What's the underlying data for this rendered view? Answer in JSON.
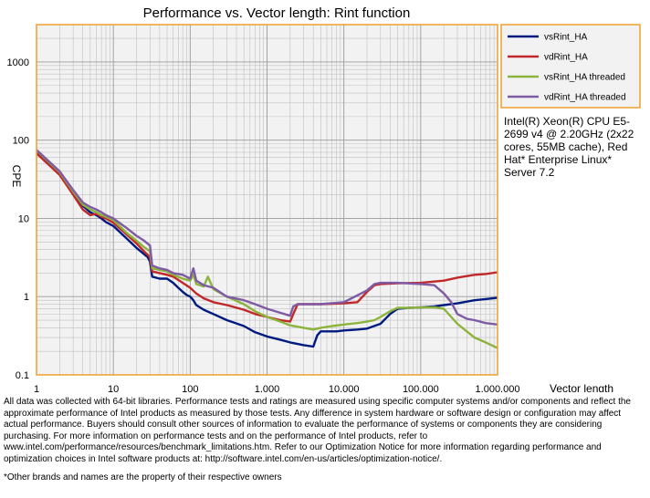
{
  "chart_data": {
    "type": "line",
    "title": "Performance vs. Vector length: Rint function",
    "xlabel": "Vector length",
    "ylabel": "CPE",
    "x_scale": "log",
    "y_scale": "log",
    "xlim": [
      1,
      1000000
    ],
    "ylim": [
      0.1,
      3000
    ],
    "x_ticks": [
      1,
      10,
      100,
      1000,
      10000,
      100000,
      1000000
    ],
    "x_tick_labels": [
      "1",
      "10",
      "100",
      "1,000",
      "10,000",
      "100,000",
      "1,000,000"
    ],
    "y_ticks": [
      0.1,
      1,
      10,
      100,
      1000
    ],
    "y_tick_labels": [
      "0.1",
      "1",
      "10",
      "100",
      "1000"
    ],
    "grid": true,
    "legend_position": "top-right",
    "series": [
      {
        "name": "vsRint_HA",
        "color": "#001a80",
        "points": [
          [
            1,
            72
          ],
          [
            2,
            38
          ],
          [
            3,
            21
          ],
          [
            4,
            14.5
          ],
          [
            5,
            12
          ],
          [
            6,
            11
          ],
          [
            7,
            10
          ],
          [
            8,
            9
          ],
          [
            10,
            8
          ],
          [
            15,
            5.5
          ],
          [
            20,
            4.2
          ],
          [
            25,
            3.5
          ],
          [
            28,
            3.2
          ],
          [
            30,
            2.8
          ],
          [
            32,
            1.8
          ],
          [
            40,
            1.7
          ],
          [
            50,
            1.7
          ],
          [
            60,
            1.5
          ],
          [
            70,
            1.3
          ],
          [
            80,
            1.15
          ],
          [
            90,
            1.05
          ],
          [
            100,
            1.0
          ],
          [
            110,
            0.9
          ],
          [
            120,
            0.78
          ],
          [
            150,
            0.68
          ],
          [
            200,
            0.6
          ],
          [
            300,
            0.5
          ],
          [
            500,
            0.42
          ],
          [
            700,
            0.35
          ],
          [
            1000,
            0.31
          ],
          [
            1500,
            0.28
          ],
          [
            2000,
            0.26
          ],
          [
            3000,
            0.24
          ],
          [
            4000,
            0.23
          ],
          [
            4500,
            0.32
          ],
          [
            5000,
            0.36
          ],
          [
            6000,
            0.36
          ],
          [
            8000,
            0.36
          ],
          [
            10000,
            0.37
          ],
          [
            15000,
            0.38
          ],
          [
            20000,
            0.39
          ],
          [
            30000,
            0.45
          ],
          [
            40000,
            0.6
          ],
          [
            50000,
            0.7
          ],
          [
            70000,
            0.72
          ],
          [
            100000,
            0.73
          ],
          [
            150000,
            0.75
          ],
          [
            200000,
            0.78
          ],
          [
            300000,
            0.82
          ],
          [
            500000,
            0.9
          ],
          [
            700000,
            0.93
          ],
          [
            1000000,
            0.97
          ]
        ]
      },
      {
        "name": "vdRint_HA",
        "color": "#c0282a",
        "points": [
          [
            1,
            68
          ],
          [
            2,
            36
          ],
          [
            3,
            20
          ],
          [
            4,
            13
          ],
          [
            5,
            11
          ],
          [
            6,
            11.5
          ],
          [
            7,
            10.5
          ],
          [
            8,
            10
          ],
          [
            10,
            8.8
          ],
          [
            15,
            6.2
          ],
          [
            20,
            4.8
          ],
          [
            25,
            3.8
          ],
          [
            30,
            3.2
          ],
          [
            32,
            2.1
          ],
          [
            40,
            2.0
          ],
          [
            50,
            1.9
          ],
          [
            60,
            1.8
          ],
          [
            80,
            1.5
          ],
          [
            100,
            1.3
          ],
          [
            120,
            1.1
          ],
          [
            150,
            0.95
          ],
          [
            200,
            0.85
          ],
          [
            300,
            0.78
          ],
          [
            500,
            0.68
          ],
          [
            700,
            0.6
          ],
          [
            1000,
            0.55
          ],
          [
            1500,
            0.5
          ],
          [
            2000,
            0.48
          ],
          [
            2200,
            0.6
          ],
          [
            2500,
            0.8
          ],
          [
            3000,
            0.8
          ],
          [
            5000,
            0.8
          ],
          [
            10000,
            0.82
          ],
          [
            15000,
            0.85
          ],
          [
            20000,
            1.15
          ],
          [
            25000,
            1.4
          ],
          [
            30000,
            1.45
          ],
          [
            50000,
            1.48
          ],
          [
            100000,
            1.5
          ],
          [
            200000,
            1.6
          ],
          [
            300000,
            1.75
          ],
          [
            500000,
            1.9
          ],
          [
            700000,
            1.95
          ],
          [
            1000000,
            2.05
          ]
        ]
      },
      {
        "name": "vsRint_HA threaded",
        "color": "#8cb43c",
        "points": [
          [
            1,
            74
          ],
          [
            2,
            39
          ],
          [
            3,
            22
          ],
          [
            4,
            15
          ],
          [
            5,
            13
          ],
          [
            6,
            12
          ],
          [
            7,
            11
          ],
          [
            8,
            10.5
          ],
          [
            10,
            9.5
          ],
          [
            15,
            6.5
          ],
          [
            20,
            5.2
          ],
          [
            25,
            4.3
          ],
          [
            30,
            3.8
          ],
          [
            32,
            2.3
          ],
          [
            40,
            2.2
          ],
          [
            50,
            2.1
          ],
          [
            60,
            1.9
          ],
          [
            80,
            1.7
          ],
          [
            100,
            1.6
          ],
          [
            110,
            1.9
          ],
          [
            120,
            1.45
          ],
          [
            150,
            1.35
          ],
          [
            170,
            1.8
          ],
          [
            200,
            1.25
          ],
          [
            300,
            1.0
          ],
          [
            500,
            0.8
          ],
          [
            700,
            0.65
          ],
          [
            1000,
            0.55
          ],
          [
            1500,
            0.48
          ],
          [
            2000,
            0.43
          ],
          [
            3000,
            0.4
          ],
          [
            4000,
            0.38
          ],
          [
            5000,
            0.4
          ],
          [
            7000,
            0.42
          ],
          [
            10000,
            0.44
          ],
          [
            15000,
            0.46
          ],
          [
            20000,
            0.48
          ],
          [
            25000,
            0.5
          ],
          [
            30000,
            0.55
          ],
          [
            40000,
            0.65
          ],
          [
            50000,
            0.72
          ],
          [
            70000,
            0.72
          ],
          [
            100000,
            0.73
          ],
          [
            150000,
            0.73
          ],
          [
            200000,
            0.7
          ],
          [
            300000,
            0.45
          ],
          [
            500000,
            0.3
          ],
          [
            700000,
            0.26
          ],
          [
            1000000,
            0.22
          ]
        ]
      },
      {
        "name": "vdRint_HA threaded",
        "color": "#7f5aa5",
        "points": [
          [
            1,
            75
          ],
          [
            2,
            40
          ],
          [
            3,
            23
          ],
          [
            4,
            16
          ],
          [
            5,
            14
          ],
          [
            6,
            13
          ],
          [
            7,
            12
          ],
          [
            8,
            11
          ],
          [
            10,
            10
          ],
          [
            15,
            7.5
          ],
          [
            20,
            6.0
          ],
          [
            25,
            5.2
          ],
          [
            30,
            4.5
          ],
          [
            32,
            2.5
          ],
          [
            40,
            2.3
          ],
          [
            50,
            2.2
          ],
          [
            60,
            2.0
          ],
          [
            80,
            1.9
          ],
          [
            100,
            1.7
          ],
          [
            110,
            2.3
          ],
          [
            120,
            1.6
          ],
          [
            150,
            1.4
          ],
          [
            200,
            1.3
          ],
          [
            300,
            1.0
          ],
          [
            500,
            0.9
          ],
          [
            700,
            0.8
          ],
          [
            1000,
            0.7
          ],
          [
            1500,
            0.62
          ],
          [
            2000,
            0.57
          ],
          [
            2200,
            0.75
          ],
          [
            2500,
            0.8
          ],
          [
            3000,
            0.8
          ],
          [
            5000,
            0.8
          ],
          [
            10000,
            0.85
          ],
          [
            20000,
            1.2
          ],
          [
            25000,
            1.45
          ],
          [
            30000,
            1.5
          ],
          [
            50000,
            1.5
          ],
          [
            100000,
            1.45
          ],
          [
            150000,
            1.4
          ],
          [
            200000,
            1.1
          ],
          [
            250000,
            0.85
          ],
          [
            300000,
            0.6
          ],
          [
            400000,
            0.52
          ],
          [
            500000,
            0.5
          ],
          [
            700000,
            0.46
          ],
          [
            1000000,
            0.44
          ]
        ]
      }
    ]
  },
  "cpu_info": "Intel(R) Xeon(R) CPU E5-2699 v4 @ 2.20GHz (2x22 cores, 55MB cache), Red Hat* Enterprise Linux* Server 7.2",
  "disclaimer": "All data was collected with 64-bit libraries. Performance tests and ratings are measured using specific computer systems and/or components and reflect the approximate performance of Intel products as measured by those tests. Any difference in system hardware or software design or configuration may affect actual performance. Buyers should consult other sources of information to evaluate the performance of systems or components they are considering purchasing. For more information on performance tests and on the performance of Intel products, refer to www.intel.com/performance/resources/benchmark_limitations.htm. Refer to our Optimization Notice for more information regarding performance and optimization choices in Intel software products at: http://software.intel.com/en-us/articles/optimization-notice/.",
  "trademark": "*Other brands and names are the property of their respective owners",
  "colors": {
    "frame": "#f0a030",
    "plot_bg": "#f2f2f2",
    "grid": "#c0c0c0"
  }
}
